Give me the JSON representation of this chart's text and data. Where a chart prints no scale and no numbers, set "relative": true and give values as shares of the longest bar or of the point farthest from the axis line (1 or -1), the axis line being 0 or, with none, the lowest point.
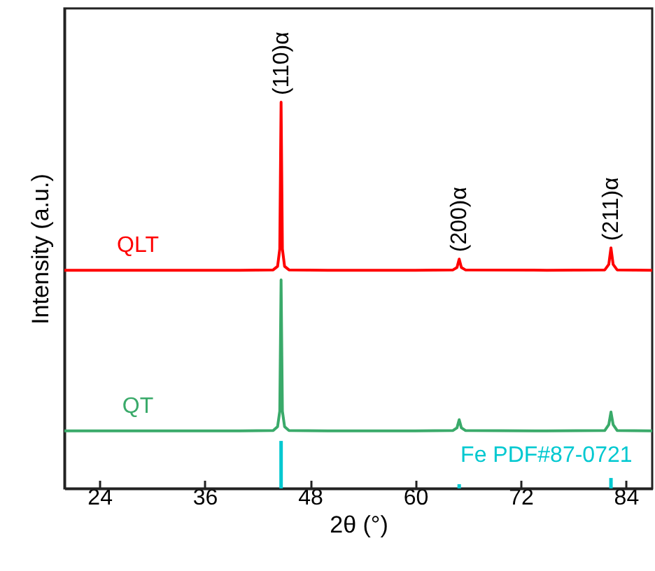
{
  "chart_data": {
    "type": "line",
    "xlabel": "2θ (°)",
    "ylabel": "Intensity (a.u.)",
    "relative": true,
    "xlim": [
      20,
      87
    ],
    "xticks": [
      24,
      36,
      48,
      60,
      72,
      84
    ],
    "marker": "none",
    "line_style": "solid",
    "series": [
      {
        "name": "QLT",
        "color": "#ff0000",
        "x": [
          20,
          30,
          40,
          43.8,
          44.3,
          44.55,
          44.7,
          44.85,
          45.1,
          45.6,
          50,
          60,
          64.3,
          64.75,
          65.0,
          65.25,
          65.7,
          75,
          81.6,
          82.05,
          82.3,
          82.55,
          83.0,
          87
        ],
        "values": [
          0.565,
          0.565,
          0.565,
          0.566,
          0.575,
          0.62,
          1.0,
          0.62,
          0.575,
          0.566,
          0.565,
          0.565,
          0.566,
          0.572,
          0.594,
          0.572,
          0.566,
          0.565,
          0.566,
          0.58,
          0.623,
          0.58,
          0.566,
          0.565
        ]
      },
      {
        "name": "QT",
        "color": "#3aaa6a",
        "x": [
          20,
          30,
          40,
          43.8,
          44.3,
          44.55,
          44.7,
          44.85,
          45.1,
          45.6,
          50,
          60,
          64.3,
          64.75,
          65.0,
          65.25,
          65.7,
          75,
          81.6,
          82.05,
          82.3,
          82.55,
          83.0,
          87
        ],
        "values": [
          0.149,
          0.149,
          0.149,
          0.15,
          0.16,
          0.2,
          0.54,
          0.2,
          0.16,
          0.15,
          0.149,
          0.149,
          0.15,
          0.157,
          0.178,
          0.157,
          0.15,
          0.149,
          0.15,
          0.165,
          0.198,
          0.165,
          0.15,
          0.149
        ]
      },
      {
        "name": "Fe PDF#87-0721",
        "type": "bar",
        "color": "#00c8d0",
        "x": [
          44.7,
          65.0,
          82.3
        ],
        "values": [
          0.123,
          0.011,
          0.027
        ]
      }
    ],
    "annotations": [
      {
        "text": "(110)α",
        "x": 44.7,
        "y": 1.0
      },
      {
        "text": "(200)α",
        "x": 65.0,
        "y": 0.594
      },
      {
        "text": "(211)α",
        "x": 82.3,
        "y": 0.623
      }
    ]
  }
}
